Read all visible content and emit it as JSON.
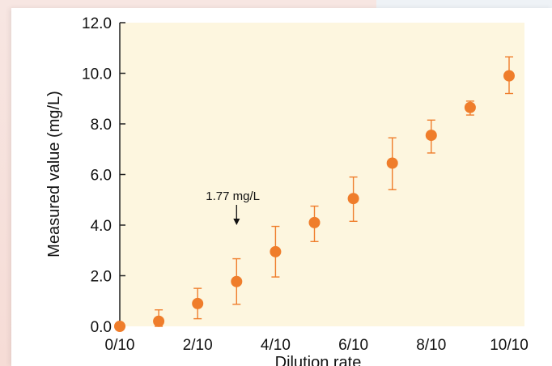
{
  "chart_data": {
    "type": "scatter",
    "xlabel": "Dilution rate",
    "ylabel": "Measured value (mg/L)",
    "x": [
      0,
      1,
      2,
      3,
      4,
      5,
      6,
      7,
      8,
      9,
      10
    ],
    "x_tick_values": [
      0,
      2,
      4,
      6,
      8,
      10
    ],
    "x_tick_labels": [
      "0/10",
      "2/10",
      "4/10",
      "6/10",
      "8/10",
      "10/10"
    ],
    "y_tick_values": [
      0,
      2,
      4,
      6,
      8,
      10,
      12
    ],
    "y_tick_labels": [
      "0.0",
      "2.0",
      "4.0",
      "6.0",
      "8.0",
      "10.0",
      "12.0"
    ],
    "xlim": [
      0,
      10
    ],
    "ylim": [
      0,
      12
    ],
    "grid": false,
    "series": [
      {
        "values": [
          0.0,
          0.2,
          0.9,
          1.77,
          2.95,
          4.1,
          5.05,
          6.45,
          7.55,
          8.65,
          9.9
        ],
        "err_low": [
          0.0,
          0.2,
          0.6,
          0.9,
          1.0,
          0.75,
          0.9,
          1.05,
          0.7,
          0.3,
          0.7
        ],
        "err_high": [
          0.0,
          0.45,
          0.6,
          0.9,
          1.0,
          0.65,
          0.85,
          1.0,
          0.6,
          0.25,
          0.75
        ]
      }
    ],
    "annotations": [
      {
        "text": "1.77 mg/L",
        "x": 3,
        "y": 1.77
      }
    ],
    "colors": {
      "marker": "#ef7d2b",
      "plot_background": "#fdf6df",
      "axis": "#222222"
    }
  }
}
